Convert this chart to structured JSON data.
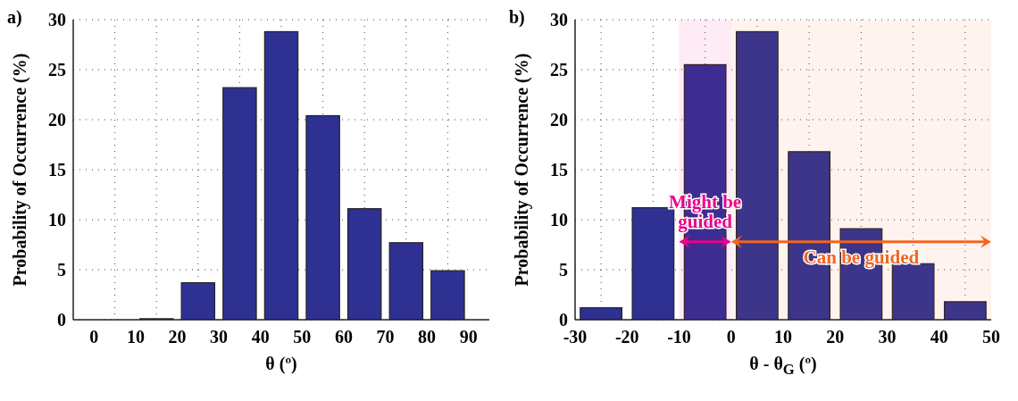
{
  "chart_data": [
    {
      "type": "histogram",
      "title": "a)",
      "xlabel": "θ (º)",
      "ylabel": "Probability of Occurrence (%)",
      "bins": [
        0,
        10,
        20,
        30,
        40,
        50,
        60,
        70,
        80,
        90
      ],
      "values": [
        0,
        0.1,
        3.7,
        23.2,
        28.8,
        20.4,
        11.1,
        7.7,
        4.9
      ],
      "color": "#2e3192",
      "xlim": [
        -5,
        95
      ],
      "xticks": [
        0,
        10,
        20,
        30,
        40,
        50,
        60,
        70,
        80,
        90
      ],
      "ylim": [
        0,
        30
      ],
      "yticks": [
        0,
        5,
        10,
        15,
        20,
        25,
        30
      ],
      "grid": true
    },
    {
      "type": "histogram",
      "title": "b)",
      "xlabel": "θ - θ$_{G}$ (º)",
      "ylabel": "Probability of Occurrence (%)",
      "bins": [
        -30,
        -20,
        -10,
        0,
        10,
        20,
        30,
        40,
        50
      ],
      "values": [
        1.2,
        11.2,
        25.5,
        28.8,
        16.8,
        9.1,
        5.6,
        1.8
      ],
      "color": "#2e3192",
      "xlim": [
        -30,
        50
      ],
      "xticks": [
        -30,
        -20,
        -10,
        0,
        10,
        20,
        30,
        40,
        50
      ],
      "ylim": [
        0,
        30
      ],
      "yticks": [
        0,
        5,
        10,
        15,
        20,
        25,
        30
      ],
      "grid": true,
      "bands": [
        {
          "axis": "x",
          "from": -10,
          "to": 0,
          "label": "Might be guided",
          "color": "#ec008c"
        },
        {
          "axis": "x",
          "from": 0,
          "to": 50,
          "label": "Can be guided",
          "color": "#f26522"
        }
      ]
    }
  ]
}
